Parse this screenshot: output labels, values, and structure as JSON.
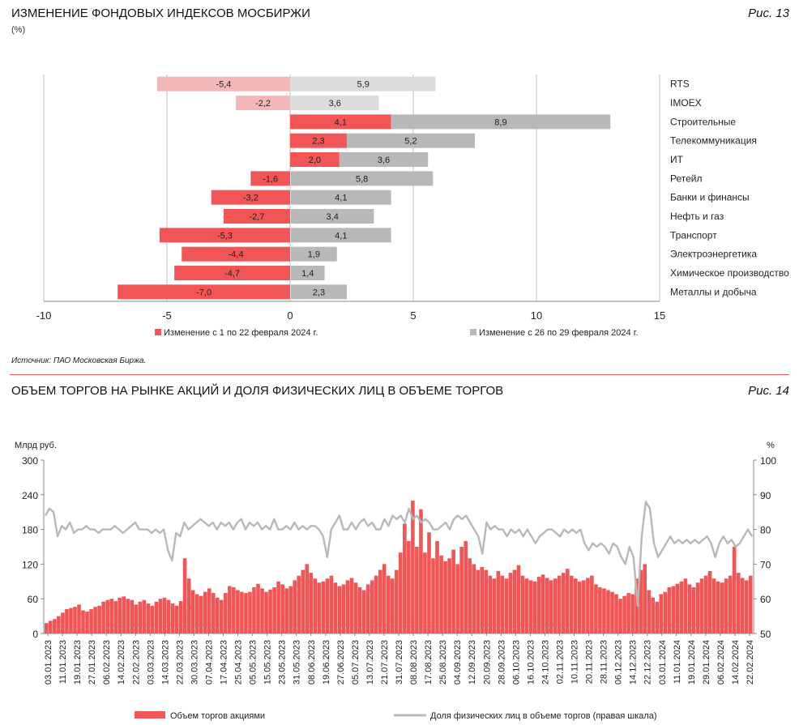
{
  "chart1": {
    "title": "ИЗМЕНЕНИЕ ФОНДОВЫХ ИНДЕКСОВ МОСБИРЖИ",
    "unit": "(%)",
    "fig": "Рис. 13",
    "source": "Источник: ПАО Московская Биржа.",
    "colors": {
      "red": "#f25555",
      "red_light": "#f5b8b8",
      "gray": "#b8b8b8",
      "gray_light": "#dcdcdc"
    }
  },
  "chart2": {
    "title": "ОБЪЕМ ТОРГОВ НА РЫНКЕ АКЦИЙ И ДОЛЯ ФИЗИЧЕСКИХ ЛИЦ В ОБЪЕМЕ ТОРГОВ",
    "fig": "Рис. 14",
    "colors": {
      "bar": "#f25555",
      "line": "#b8b8b8"
    }
  },
  "chart_data": [
    {
      "type": "bar",
      "orientation": "horizontal",
      "categories": [
        "RTS",
        "IMOEX",
        "Строительные",
        "Телекоммуникация",
        "ИТ",
        "Ретейл",
        "Банки и финансы",
        "Нефть и газ",
        "Транспорт",
        "Электроэнергетика",
        "Химическое производство",
        "Металлы и добыча"
      ],
      "series": [
        {
          "name": "Изменение с 1 по 22 февраля 2024 г.",
          "values": [
            -5.4,
            -2.2,
            4.1,
            2.3,
            2.0,
            -1.6,
            -3.2,
            -2.7,
            -5.3,
            -4.4,
            -4.7,
            -7.0
          ],
          "labels": [
            "-5,4",
            "-2,2",
            "4,1",
            "2,3",
            "2,0",
            "-1,6",
            "-3,2",
            "-2,7",
            "-5,3",
            "-4,4",
            "-4,7",
            "-7,0"
          ]
        },
        {
          "name": "Изменение с 26 по 29 февраля 2024 г.",
          "values": [
            5.9,
            3.6,
            8.9,
            5.2,
            3.6,
            5.8,
            4.1,
            3.4,
            4.1,
            1.9,
            1.4,
            2.3
          ],
          "labels": [
            "5,9",
            "3,6",
            "8,9",
            "5,2",
            "3,6",
            "5,8",
            "4,1",
            "3,4",
            "4,1",
            "1,9",
            "1,4",
            "2,3"
          ]
        }
      ],
      "xlim": [
        -10,
        15
      ],
      "xticks": [
        "-10",
        "-5",
        "0",
        "5",
        "10",
        "15"
      ],
      "grid": true,
      "legend": "bottom"
    },
    {
      "type": "bar+line",
      "ylabel_left": "Млрд руб.",
      "ylabel_right": "%",
      "ylim_left": [
        0,
        300
      ],
      "yticks_left": [
        "0",
        "60",
        "120",
        "180",
        "240",
        "300"
      ],
      "ylim_right": [
        50,
        100
      ],
      "yticks_right": [
        "50",
        "60",
        "70",
        "80",
        "90",
        "100"
      ],
      "x_ticks": [
        "03.01.2023",
        "11.01.2023",
        "19.01.2023",
        "27.01.2023",
        "06.02.2023",
        "14.02.2023",
        "22.02.2023",
        "03.03.2023",
        "14.03.2023",
        "22.03.2023",
        "30.03.2023",
        "07.04.2023",
        "17.04.2023",
        "25.04.2023",
        "05.05.2023",
        "15.05.2023",
        "23.05.2023",
        "31.05.2023",
        "08.06.2023",
        "19.06.2023",
        "27.06.2023",
        "05.07.2023",
        "13.07.2023",
        "21.07.2023",
        "31.07.2023",
        "08.08.2023",
        "17.08.2023",
        "25.08.2023",
        "04.09.2023",
        "12.09.2023",
        "20.09.2023",
        "28.09.2023",
        "06.10.2023",
        "16.10.2023",
        "24.10.2023",
        "02.11.2023",
        "10.11.2023",
        "20.11.2023",
        "28.11.2023",
        "06.12.2023",
        "14.12.2023",
        "22.12.2023",
        "03.01.2024",
        "11.01.2024",
        "19.01.2024",
        "29.01.2024",
        "06.02.2024",
        "14.02.2024",
        "22.02.2024"
      ],
      "bar_series": {
        "name": "Объем торгов акциями",
        "values": [
          18,
          22,
          25,
          30,
          36,
          42,
          44,
          46,
          50,
          40,
          38,
          42,
          46,
          48,
          55,
          58,
          60,
          56,
          62,
          64,
          60,
          58,
          50,
          55,
          58,
          52,
          48,
          55,
          60,
          62,
          58,
          52,
          48,
          56,
          130,
          95,
          75,
          68,
          65,
          72,
          78,
          70,
          62,
          58,
          70,
          82,
          80,
          75,
          72,
          70,
          72,
          80,
          86,
          78,
          72,
          76,
          80,
          90,
          85,
          78,
          82,
          92,
          100,
          110,
          120,
          105,
          95,
          88,
          90,
          95,
          100,
          88,
          82,
          85,
          92,
          96,
          88,
          80,
          75,
          85,
          92,
          100,
          110,
          120,
          100,
          95,
          110,
          140,
          190,
          160,
          230,
          150,
          215,
          140,
          175,
          130,
          160,
          135,
          125,
          130,
          145,
          120,
          150,
          160,
          130,
          120,
          110,
          115,
          110,
          100,
          95,
          108,
          100,
          95,
          105,
          110,
          118,
          100,
          95,
          92,
          90,
          98,
          102,
          96,
          92,
          95,
          100,
          105,
          112,
          100,
          95,
          90,
          92,
          96,
          100,
          85,
          80,
          78,
          75,
          72,
          68,
          60,
          65,
          70,
          68,
          95,
          110,
          120,
          75,
          62,
          55,
          68,
          72,
          80,
          82,
          86,
          90,
          95,
          85,
          80,
          88,
          95,
          100,
          108,
          95,
          90,
          88,
          95,
          100,
          150,
          105,
          96,
          92,
          100
        ],
        "note": "approximate weekly-scale profile read off the chart"
      },
      "line_series": {
        "name": "Доля физических лиц в объеме торгов (правая шкала)",
        "values": [
          84,
          86,
          85,
          78,
          81,
          80,
          82,
          79,
          80,
          80,
          81,
          80,
          80,
          79,
          80,
          80,
          80,
          81,
          80,
          79,
          80,
          81,
          82,
          80,
          80,
          80,
          79,
          80,
          79,
          80,
          74,
          71,
          79,
          78,
          82,
          80,
          81,
          82,
          83,
          82,
          81,
          82,
          80,
          82,
          81,
          82,
          80,
          82,
          83,
          80,
          82,
          81,
          82,
          80,
          81,
          80,
          83,
          80,
          80,
          81,
          80,
          82,
          80,
          81,
          80,
          81,
          81,
          80,
          78,
          72,
          80,
          82,
          84,
          80,
          80,
          82,
          80,
          82,
          83,
          81,
          82,
          80,
          80,
          83,
          81,
          84,
          83,
          84,
          82,
          86,
          83,
          84,
          82,
          83,
          82,
          80,
          80,
          81,
          82,
          80,
          83,
          84,
          83,
          84,
          82,
          80,
          78,
          73,
          82,
          80,
          81,
          80,
          80,
          78,
          80,
          79,
          80,
          78,
          80,
          78,
          76,
          78,
          79,
          80,
          80,
          79,
          78,
          80,
          79,
          80,
          79,
          80,
          76,
          74,
          76,
          75,
          76,
          75,
          73,
          76,
          75,
          72,
          70,
          75,
          72,
          58,
          78,
          88,
          86,
          76,
          72,
          74,
          76,
          78,
          76,
          77,
          76,
          77,
          76,
          77,
          76,
          77,
          78,
          76,
          72,
          76,
          78,
          76,
          77,
          75,
          76,
          78,
          80,
          78
        ]
      },
      "legend": "bottom"
    }
  ]
}
